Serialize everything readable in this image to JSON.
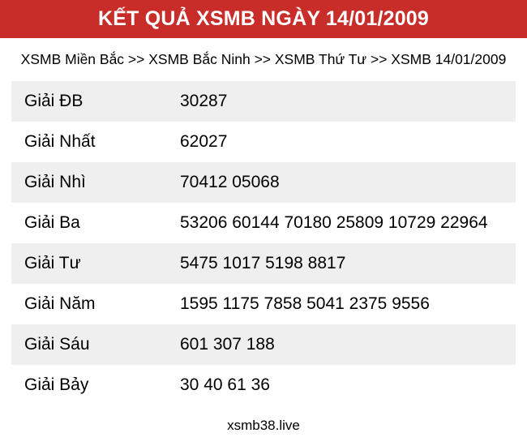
{
  "header": {
    "title": "KẾT QUẢ XSMB NGÀY 14/01/2009",
    "bg_color": "#c82d29",
    "text_color": "#ffffff"
  },
  "breadcrumb": {
    "separator": ">>",
    "items": [
      "XSMB Miền Bắc",
      "XSMB Bắc Ninh",
      "XSMB Thứ Tư",
      "XSMB 14/01/2009"
    ]
  },
  "results_table": {
    "stripe_color": "#efefef",
    "rows": [
      {
        "label": "Giải ĐB",
        "numbers": "30287"
      },
      {
        "label": "Giải Nhất",
        "numbers": "62027"
      },
      {
        "label": "Giải Nhì",
        "numbers": "70412 05068"
      },
      {
        "label": "Giải Ba",
        "numbers": "53206 60144 70180 25809 10729 22964"
      },
      {
        "label": "Giải Tư",
        "numbers": "5475 1017 5198 8817"
      },
      {
        "label": "Giải Năm",
        "numbers": "1595 1175 7858 5041 2375 9556"
      },
      {
        "label": "Giải Sáu",
        "numbers": "601 307 188"
      },
      {
        "label": "Giải Bảy",
        "numbers": "30 40 61 36"
      }
    ]
  },
  "footer": {
    "site_name": "xsmb38.live"
  }
}
